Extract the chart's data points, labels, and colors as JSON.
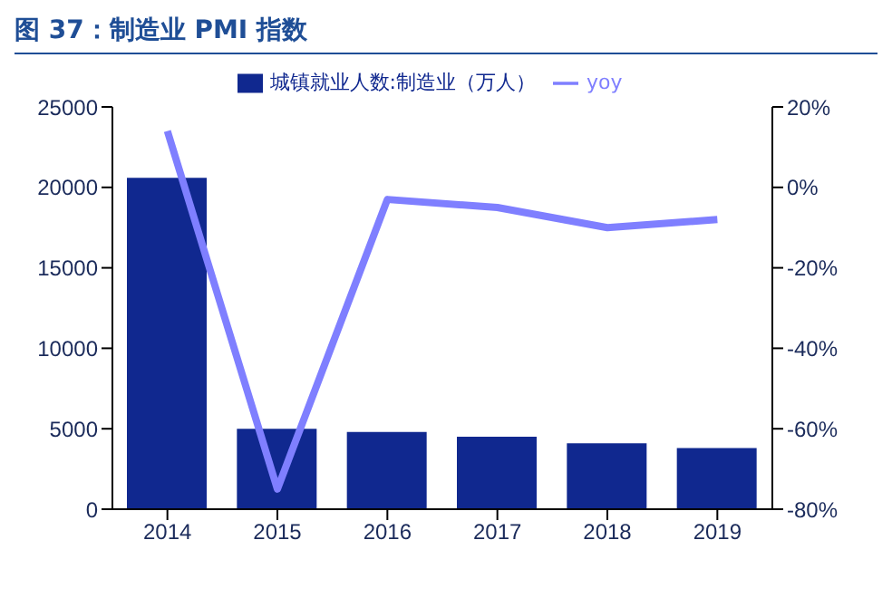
{
  "chart_data": {
    "type": "bar",
    "title": "图 37：制造业 PMI 指数",
    "categories": [
      "2014",
      "2015",
      "2016",
      "2017",
      "2018",
      "2019"
    ],
    "series": [
      {
        "name": "城镇就业人数:制造业（万人）",
        "color": "#10288f",
        "values": [
          20600,
          5000,
          4800,
          4500,
          4100,
          3800
        ]
      },
      {
        "name": "yoy",
        "type": "line",
        "axis": "y2",
        "color": "#7f7fff",
        "values": [
          14,
          -75,
          -3,
          -5,
          -10,
          -8
        ]
      }
    ],
    "ylim": [
      0,
      25000
    ],
    "yticks": [
      0,
      5000,
      10000,
      15000,
      20000,
      25000
    ],
    "y2lim": [
      -80,
      20
    ],
    "y2ticks": [
      {
        "value": -80,
        "label": "-80%"
      },
      {
        "value": -60,
        "label": "-60%"
      },
      {
        "value": -40,
        "label": "-40%"
      },
      {
        "value": -20,
        "label": "-20%"
      },
      {
        "value": 0,
        "label": "0%"
      },
      {
        "value": 20,
        "label": "20%"
      }
    ],
    "grid": false,
    "legend": "top",
    "marker": "none"
  }
}
